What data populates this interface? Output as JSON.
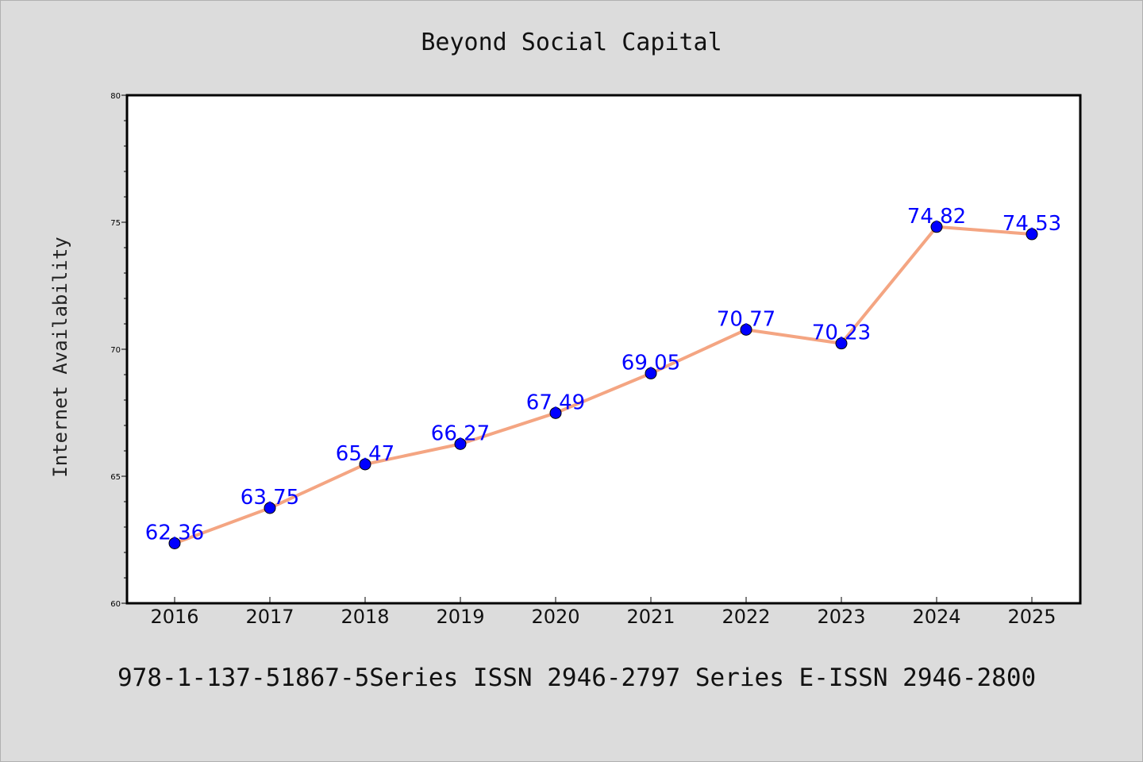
{
  "colors": {
    "background": "#dcdcdc",
    "plot_background": "#ffffff",
    "line": "#f4a582",
    "marker": "#0000ff",
    "label": "#0000ff"
  },
  "footer": "978-1-137-51867-5Series ISSN 2946-2797 Series E-ISSN 2946-2800",
  "chart_data": {
    "type": "line",
    "title": "Beyond Social Capital",
    "xlabel": "",
    "ylabel": "Internet Availability",
    "categories": [
      "2016",
      "2017",
      "2018",
      "2019",
      "2020",
      "2021",
      "2022",
      "2023",
      "2024",
      "2025"
    ],
    "series": [
      {
        "values": [
          62.36,
          63.75,
          65.47,
          66.27,
          67.49,
          69.05,
          70.77,
          70.23,
          74.82,
          74.53
        ],
        "labels": [
          "62.36",
          "63.75",
          "65.47",
          "66.27",
          "67.49",
          "69.05",
          "70.77",
          "70.23",
          "74.82",
          "74.53"
        ]
      }
    ],
    "ylim": [
      60,
      80
    ],
    "yticks": [
      60,
      65,
      70,
      75,
      80
    ],
    "grid": false,
    "legend": false
  }
}
